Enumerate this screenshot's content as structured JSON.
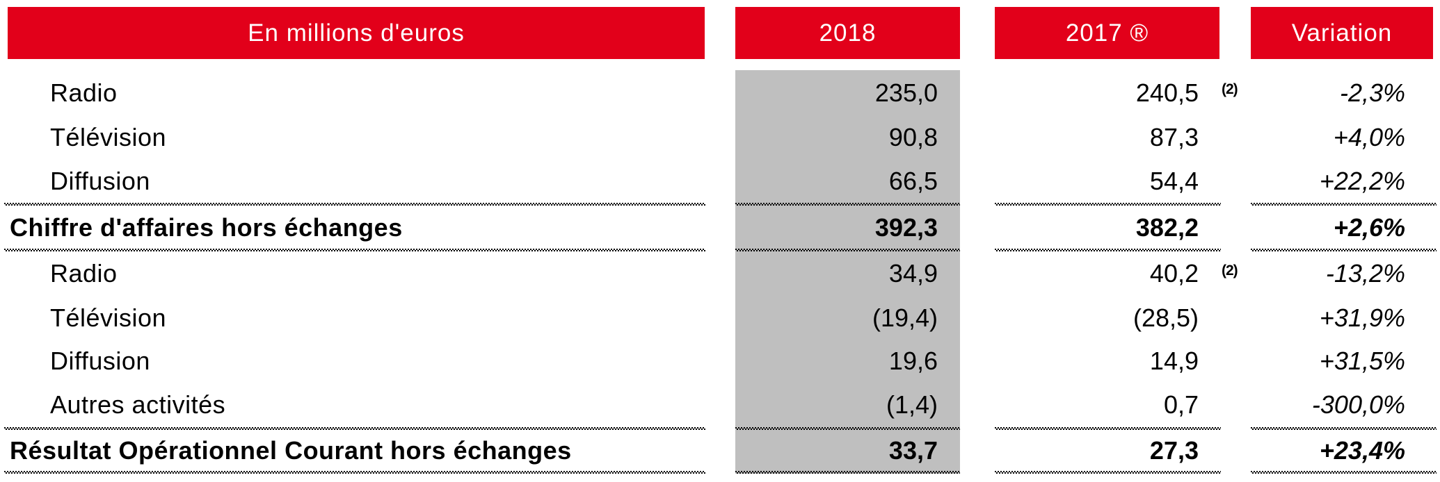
{
  "colors": {
    "header_red": "#E2001A",
    "column_gray": "#BFBFBF",
    "text_black": "#000000",
    "header_text": "#FFFFFF"
  },
  "table": {
    "unit_header": "En millions d'euros",
    "columns": [
      "2018",
      "2017 ®",
      "Variation"
    ],
    "rows": [
      {
        "label": "Radio",
        "y2018": "235,0",
        "y2017": "240,5",
        "note": "(2)",
        "variation": "-2,3%"
      },
      {
        "label": "Télévision",
        "y2018": "90,8",
        "y2017": "87,3",
        "note": "",
        "variation": "+4,0%"
      },
      {
        "label": "Diffusion",
        "y2018": "66,5",
        "y2017": "54,4",
        "note": "",
        "variation": "+22,2%"
      },
      {
        "label": "Chiffre d'affaires hors échanges",
        "y2018": "392,3",
        "y2017": "382,2",
        "note": "",
        "variation": "+2,6%"
      },
      {
        "label": "Radio",
        "y2018": "34,9",
        "y2017": "40,2",
        "note": "(2)",
        "variation": "-13,2%"
      },
      {
        "label": "Télévision",
        "y2018": "(19,4)",
        "y2017": "(28,5)",
        "note": "",
        "variation": "+31,9%"
      },
      {
        "label": "Diffusion",
        "y2018": "19,6",
        "y2017": "14,9",
        "note": "",
        "variation": "+31,5%"
      },
      {
        "label": "Autres activités",
        "y2018": "(1,4)",
        "y2017": "0,7",
        "note": "",
        "variation": "-300,0%"
      },
      {
        "label": "Résultat Opérationnel Courant hors échanges",
        "y2018": "33,7",
        "y2017": "27,3",
        "note": "",
        "variation": "+23,4%"
      }
    ]
  }
}
